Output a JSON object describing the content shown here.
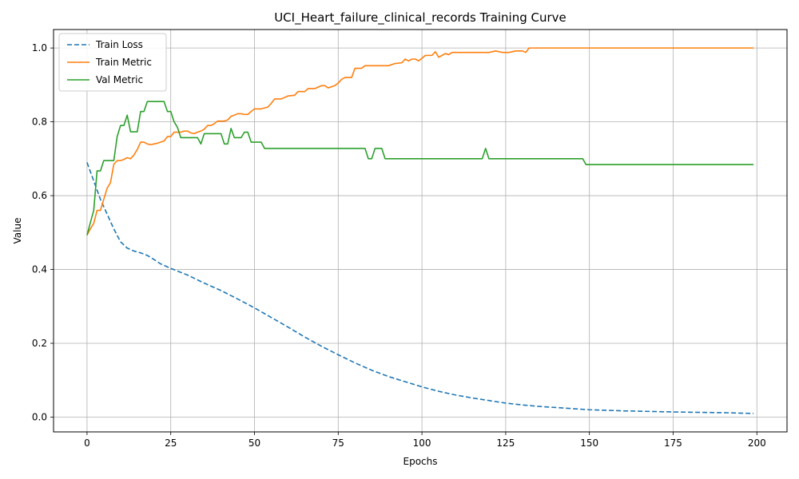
{
  "chart_data": {
    "type": "line",
    "title": "UCI_Heart_failure_clinical_records Training Curve",
    "xlabel": "Epochs",
    "ylabel": "Value",
    "xlim": [
      -10,
      209
    ],
    "ylim": [
      -0.04,
      1.05
    ],
    "xticks": [
      0,
      25,
      50,
      75,
      100,
      125,
      150,
      175,
      200
    ],
    "xtick_labels": [
      "0",
      "25",
      "50",
      "75",
      "100",
      "125",
      "150",
      "175",
      "200"
    ],
    "yticks": [
      0.0,
      0.2,
      0.4,
      0.6,
      0.8,
      1.0
    ],
    "ytick_labels": [
      "0.0",
      "0.2",
      "0.4",
      "0.6",
      "0.8",
      "1.0"
    ],
    "grid": true,
    "legend_position": "upper-left",
    "series": [
      {
        "name": "Train Loss",
        "color": "#1f77b4",
        "style": "dashed",
        "points": [
          [
            0,
            0.69
          ],
          [
            2,
            0.64
          ],
          [
            4,
            0.59
          ],
          [
            6,
            0.55
          ],
          [
            8,
            0.51
          ],
          [
            10,
            0.475
          ],
          [
            12,
            0.458
          ],
          [
            14,
            0.45
          ],
          [
            16,
            0.445
          ],
          [
            18,
            0.438
          ],
          [
            20,
            0.427
          ],
          [
            22,
            0.415
          ],
          [
            25,
            0.403
          ],
          [
            30,
            0.385
          ],
          [
            35,
            0.363
          ],
          [
            40,
            0.343
          ],
          [
            45,
            0.32
          ],
          [
            50,
            0.296
          ],
          [
            55,
            0.27
          ],
          [
            60,
            0.244
          ],
          [
            65,
            0.217
          ],
          [
            70,
            0.192
          ],
          [
            75,
            0.169
          ],
          [
            80,
            0.147
          ],
          [
            85,
            0.127
          ],
          [
            90,
            0.11
          ],
          [
            95,
            0.096
          ],
          [
            100,
            0.082
          ],
          [
            105,
            0.07
          ],
          [
            110,
            0.06
          ],
          [
            115,
            0.052
          ],
          [
            120,
            0.045
          ],
          [
            125,
            0.038
          ],
          [
            130,
            0.033
          ],
          [
            135,
            0.029
          ],
          [
            140,
            0.026
          ],
          [
            145,
            0.023
          ],
          [
            150,
            0.02
          ],
          [
            160,
            0.017
          ],
          [
            175,
            0.014
          ],
          [
            190,
            0.012
          ],
          [
            199,
            0.01
          ]
        ]
      },
      {
        "name": "Train Metric",
        "color": "#ff7f0e",
        "style": "solid",
        "points": [
          [
            0,
            0.493
          ],
          [
            1,
            0.51
          ],
          [
            2,
            0.525
          ],
          [
            3,
            0.56
          ],
          [
            4,
            0.56
          ],
          [
            5,
            0.59
          ],
          [
            6,
            0.62
          ],
          [
            7,
            0.635
          ],
          [
            8,
            0.685
          ],
          [
            9,
            0.695
          ],
          [
            10,
            0.695
          ],
          [
            11,
            0.698
          ],
          [
            12,
            0.703
          ],
          [
            13,
            0.7
          ],
          [
            14,
            0.71
          ],
          [
            15,
            0.725
          ],
          [
            16,
            0.745
          ],
          [
            17,
            0.745
          ],
          [
            18,
            0.74
          ],
          [
            19,
            0.738
          ],
          [
            20,
            0.74
          ],
          [
            21,
            0.742
          ],
          [
            22,
            0.745
          ],
          [
            23,
            0.748
          ],
          [
            24,
            0.76
          ],
          [
            25,
            0.76
          ],
          [
            26,
            0.772
          ],
          [
            27,
            0.772
          ],
          [
            28,
            0.772
          ],
          [
            29,
            0.775
          ],
          [
            30,
            0.775
          ],
          [
            31,
            0.77
          ],
          [
            32,
            0.768
          ],
          [
            33,
            0.772
          ],
          [
            34,
            0.775
          ],
          [
            35,
            0.78
          ],
          [
            36,
            0.79
          ],
          [
            37,
            0.79
          ],
          [
            38,
            0.795
          ],
          [
            39,
            0.802
          ],
          [
            40,
            0.802
          ],
          [
            41,
            0.802
          ],
          [
            42,
            0.805
          ],
          [
            43,
            0.815
          ],
          [
            44,
            0.818
          ],
          [
            45,
            0.822
          ],
          [
            46,
            0.822
          ],
          [
            47,
            0.82
          ],
          [
            48,
            0.82
          ],
          [
            49,
            0.828
          ],
          [
            50,
            0.835
          ],
          [
            52,
            0.835
          ],
          [
            54,
            0.84
          ],
          [
            55,
            0.85
          ],
          [
            56,
            0.862
          ],
          [
            58,
            0.862
          ],
          [
            60,
            0.87
          ],
          [
            62,
            0.872
          ],
          [
            63,
            0.882
          ],
          [
            65,
            0.882
          ],
          [
            66,
            0.89
          ],
          [
            68,
            0.89
          ],
          [
            70,
            0.898
          ],
          [
            71,
            0.898
          ],
          [
            72,
            0.892
          ],
          [
            74,
            0.898
          ],
          [
            75,
            0.905
          ],
          [
            76,
            0.915
          ],
          [
            77,
            0.92
          ],
          [
            79,
            0.92
          ],
          [
            80,
            0.945
          ],
          [
            82,
            0.945
          ],
          [
            83,
            0.952
          ],
          [
            85,
            0.952
          ],
          [
            90,
            0.952
          ],
          [
            92,
            0.958
          ],
          [
            94,
            0.96
          ],
          [
            95,
            0.97
          ],
          [
            96,
            0.965
          ],
          [
            97,
            0.97
          ],
          [
            98,
            0.97
          ],
          [
            99,
            0.965
          ],
          [
            100,
            0.972
          ],
          [
            101,
            0.98
          ],
          [
            103,
            0.98
          ],
          [
            104,
            0.99
          ],
          [
            105,
            0.975
          ],
          [
            106,
            0.98
          ],
          [
            107,
            0.985
          ],
          [
            108,
            0.982
          ],
          [
            109,
            0.988
          ],
          [
            120,
            0.988
          ],
          [
            122,
            0.992
          ],
          [
            124,
            0.988
          ],
          [
            126,
            0.988
          ],
          [
            128,
            0.992
          ],
          [
            130,
            0.992
          ],
          [
            131,
            0.988
          ],
          [
            132,
            1.0
          ],
          [
            199,
            1.0
          ]
        ]
      },
      {
        "name": "Val Metric",
        "color": "#2ca02c",
        "style": "solid",
        "points": [
          [
            0,
            0.493
          ],
          [
            1,
            0.527
          ],
          [
            2,
            0.56
          ],
          [
            3,
            0.667
          ],
          [
            4,
            0.667
          ],
          [
            5,
            0.695
          ],
          [
            8,
            0.695
          ],
          [
            9,
            0.76
          ],
          [
            10,
            0.79
          ],
          [
            11,
            0.79
          ],
          [
            12,
            0.818
          ],
          [
            13,
            0.773
          ],
          [
            15,
            0.773
          ],
          [
            16,
            0.828
          ],
          [
            17,
            0.828
          ],
          [
            18,
            0.855
          ],
          [
            23,
            0.855
          ],
          [
            24,
            0.828
          ],
          [
            25,
            0.828
          ],
          [
            26,
            0.8
          ],
          [
            27,
            0.785
          ],
          [
            28,
            0.757
          ],
          [
            33,
            0.757
          ],
          [
            34,
            0.74
          ],
          [
            35,
            0.768
          ],
          [
            40,
            0.768
          ],
          [
            41,
            0.74
          ],
          [
            42,
            0.74
          ],
          [
            43,
            0.782
          ],
          [
            44,
            0.757
          ],
          [
            46,
            0.757
          ],
          [
            47,
            0.772
          ],
          [
            48,
            0.772
          ],
          [
            49,
            0.745
          ],
          [
            52,
            0.745
          ],
          [
            53,
            0.728
          ],
          [
            83,
            0.728
          ],
          [
            84,
            0.7
          ],
          [
            85,
            0.7
          ],
          [
            86,
            0.728
          ],
          [
            88,
            0.728
          ],
          [
            89,
            0.7
          ],
          [
            118,
            0.7
          ],
          [
            119,
            0.728
          ],
          [
            120,
            0.7
          ],
          [
            148,
            0.7
          ],
          [
            149,
            0.684
          ],
          [
            199,
            0.684
          ]
        ]
      }
    ]
  }
}
